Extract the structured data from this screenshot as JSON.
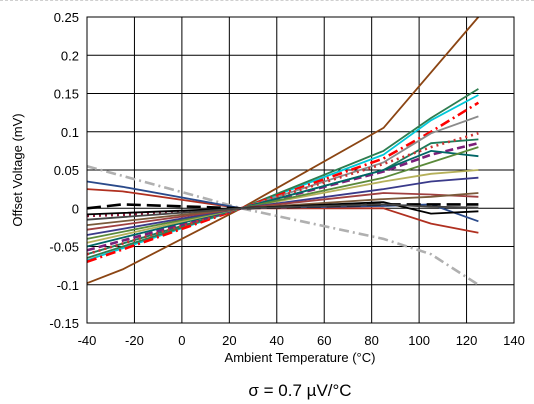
{
  "chart_data": {
    "type": "line",
    "title": "",
    "xlabel": "Ambient Temperature (°C)",
    "ylabel": "Offset Voltage (mV)",
    "xlim": [
      -40,
      140
    ],
    "ylim": [
      -0.15,
      0.25
    ],
    "x_ticks": [
      -40,
      -20,
      0,
      20,
      40,
      60,
      80,
      100,
      120,
      140
    ],
    "y_ticks": [
      -0.15,
      -0.1,
      -0.05,
      0,
      0.05,
      0.1,
      0.15,
      0.2,
      0.25
    ],
    "x_tick_labels": [
      "-40",
      "-20",
      "0",
      "20",
      "40",
      "60",
      "80",
      "100",
      "120",
      "140"
    ],
    "y_tick_labels": [
      "-0.15",
      "-0.1",
      "-0.05",
      "0",
      "0.05",
      "0.1",
      "0.15",
      "0.2",
      "0.25"
    ],
    "grid": true,
    "legend": "none",
    "caption": "σ = 0.7 µV/°C",
    "series": [
      {
        "color": "#8b4513",
        "dash": "solid",
        "x": [
          -40,
          -25,
          25,
          85,
          125
        ],
        "y": [
          -0.098,
          -0.08,
          0.0,
          0.105,
          0.25
        ]
      },
      {
        "color": "#00c8d8",
        "dash": "solid",
        "x": [
          -40,
          25,
          85,
          105,
          125
        ],
        "y": [
          -0.068,
          0.0,
          0.07,
          0.115,
          0.148
        ]
      },
      {
        "color": "#2e7d4f",
        "dash": "solid",
        "x": [
          -40,
          25,
          85,
          105,
          125
        ],
        "y": [
          -0.065,
          0.0,
          0.075,
          0.118,
          0.156
        ]
      },
      {
        "color": "#ff0000",
        "dash": "dashdot",
        "x": [
          -40,
          25,
          85,
          105,
          125
        ],
        "y": [
          -0.07,
          0.0,
          0.065,
          0.1,
          0.138
        ]
      },
      {
        "color": "#8b8b8b",
        "dash": "solid",
        "x": [
          -40,
          25,
          85,
          105,
          125
        ],
        "y": [
          -0.06,
          0.0,
          0.06,
          0.098,
          0.12
        ]
      },
      {
        "color": "#1e7a5a",
        "dash": "solid",
        "x": [
          -40,
          25,
          85,
          105,
          125
        ],
        "y": [
          -0.06,
          0.0,
          0.05,
          0.085,
          0.09
        ]
      },
      {
        "color": "#7a1f7a",
        "dash": "dash",
        "x": [
          -40,
          25,
          85,
          105,
          125
        ],
        "y": [
          -0.055,
          0.0,
          0.048,
          0.07,
          0.085
        ]
      },
      {
        "color": "#cc3333",
        "dash": "dot",
        "x": [
          -40,
          25,
          85,
          105,
          125
        ],
        "y": [
          -0.06,
          0.0,
          0.058,
          0.08,
          0.098
        ]
      },
      {
        "color": "#006666",
        "dash": "solid",
        "x": [
          -40,
          25,
          85,
          105,
          125
        ],
        "y": [
          -0.05,
          0.0,
          0.05,
          0.075,
          0.068
        ]
      },
      {
        "color": "#b5b05a",
        "dash": "solid",
        "x": [
          -40,
          25,
          85,
          105,
          125
        ],
        "y": [
          -0.045,
          0.0,
          0.035,
          0.045,
          0.05
        ]
      },
      {
        "color": "#5a8a3a",
        "dash": "solid",
        "x": [
          -40,
          25,
          85,
          105,
          125
        ],
        "y": [
          -0.04,
          0.0,
          0.04,
          0.06,
          0.08
        ]
      },
      {
        "color": "#3a3a8a",
        "dash": "solid",
        "x": [
          -40,
          25,
          85,
          105,
          125
        ],
        "y": [
          -0.035,
          0.0,
          0.025,
          0.035,
          0.04
        ]
      },
      {
        "color": "#a04040",
        "dash": "solid",
        "x": [
          -40,
          25,
          85,
          105,
          125
        ],
        "y": [
          -0.028,
          0.0,
          0.02,
          0.018,
          0.015
        ]
      },
      {
        "color": "#7a5a3a",
        "dash": "solid",
        "x": [
          -40,
          25,
          85,
          105,
          125
        ],
        "y": [
          -0.022,
          0.0,
          0.012,
          0.015,
          0.02
        ]
      },
      {
        "color": "#8b1a3a",
        "dash": "dot",
        "x": [
          -40,
          -20,
          25
        ],
        "y": [
          -0.01,
          -0.008,
          0.0
        ]
      },
      {
        "color": "#b0b0b0",
        "dash": "dashdot",
        "x": [
          -40,
          25,
          85,
          105,
          125
        ],
        "y": [
          0.055,
          0.0,
          -0.04,
          -0.06,
          -0.1
        ]
      },
      {
        "color": "#b03020",
        "dash": "solid",
        "x": [
          -40,
          -25,
          25,
          85,
          105,
          125
        ],
        "y": [
          0.025,
          0.022,
          0.0,
          0.0,
          -0.02,
          -0.032
        ]
      },
      {
        "color": "#2a4a8a",
        "dash": "solid",
        "x": [
          -40,
          -25,
          25,
          85,
          105,
          125
        ],
        "y": [
          0.035,
          0.028,
          0.0,
          0.003,
          0.005,
          -0.017
        ]
      },
      {
        "color": "#000000",
        "dash": "solid",
        "x": [
          -40,
          25,
          85,
          105,
          125
        ],
        "y": [
          -0.008,
          0.0,
          0.008,
          -0.007,
          -0.004
        ]
      },
      {
        "color": "#000000",
        "dash": "longdash",
        "x": [
          -40,
          -25,
          25,
          85,
          125
        ],
        "y": [
          0.0,
          0.005,
          0.0,
          0.005,
          0.005
        ]
      },
      {
        "color": "#444444",
        "dash": "solid",
        "x": [
          -40,
          25,
          85,
          105,
          125
        ],
        "y": [
          -0.015,
          0.0,
          0.005,
          0.002,
          0.001
        ]
      }
    ]
  }
}
